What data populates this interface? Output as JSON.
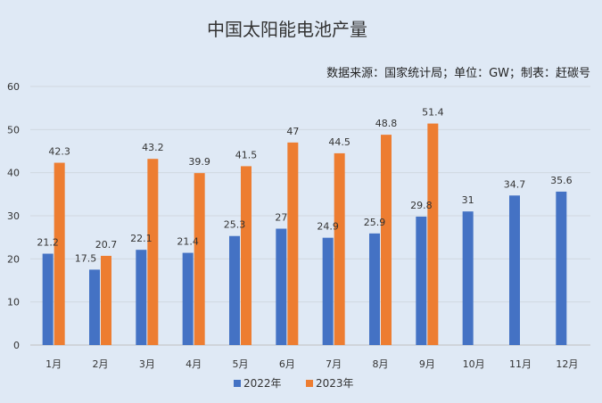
{
  "chart_data": {
    "type": "bar",
    "title": "中国太阳能电池产量",
    "subtitle": "数据来源：国家统计局；单位：GW；制表：赶碳号",
    "categories": [
      "1月",
      "2月",
      "3月",
      "4月",
      "5月",
      "6月",
      "7月",
      "8月",
      "9月",
      "10月",
      "11月",
      "12月"
    ],
    "series": [
      {
        "name": "2022年",
        "color": "#4472c4",
        "values": [
          21.2,
          17.5,
          22.1,
          21.4,
          25.3,
          27,
          24.9,
          25.9,
          29.8,
          31,
          34.7,
          35.6
        ]
      },
      {
        "name": "2023年",
        "color": "#ed7d31",
        "values": [
          42.3,
          20.7,
          43.2,
          39.9,
          41.5,
          47,
          44.5,
          48.8,
          51.4,
          null,
          null,
          null
        ]
      }
    ],
    "ylim": [
      0,
      60
    ],
    "yticks": [
      0,
      10,
      20,
      30,
      40,
      50,
      60
    ],
    "grid": true,
    "legend_position": "bottom"
  }
}
